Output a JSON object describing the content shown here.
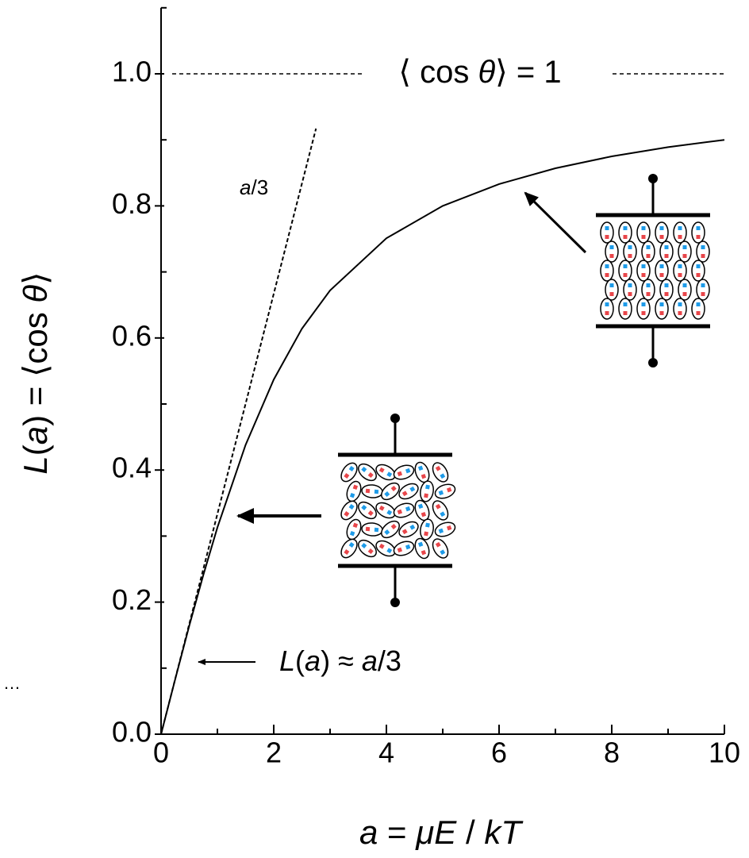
{
  "chart_data": {
    "type": "line",
    "x_label": [
      "a",
      " = ",
      "μE",
      " / ",
      "kT"
    ],
    "y_label": [
      "L",
      "(",
      "a",
      ") = ⟨cos ",
      "θ",
      "⟩"
    ],
    "annotations": {
      "limit": [
        "⟨ cos ",
        "θ",
        "⟩ = 1"
      ],
      "slope": [
        "a",
        "/3"
      ],
      "approx": [
        "L",
        "(",
        "a",
        ") ≈ ",
        "a",
        "/3"
      ],
      "corner": "…"
    },
    "x": [
      0,
      0.25,
      0.5,
      0.75,
      1,
      1.5,
      2,
      2.5,
      3,
      4,
      5,
      6,
      7,
      8,
      9,
      10
    ],
    "series": [
      {
        "color": "#000000",
        "style": "solid",
        "x": [
          0,
          0.25,
          0.5,
          0.75,
          1,
          1.5,
          2,
          2.5,
          3,
          4,
          5,
          6,
          7,
          8,
          9,
          10
        ],
        "values": [
          0,
          0.083,
          0.164,
          0.241,
          0.313,
          0.438,
          0.537,
          0.614,
          0.672,
          0.751,
          0.8,
          0.833,
          0.857,
          0.875,
          0.889,
          0.9
        ]
      },
      {
        "color": "#000000",
        "style": "dashed",
        "x": [
          0,
          2.75
        ],
        "values": [
          0,
          0.917
        ]
      }
    ],
    "reference_line": 1.0,
    "xlim": [
      0,
      10
    ],
    "ylim": [
      0,
      1.1
    ],
    "xticks": [
      0,
      2,
      4,
      6,
      8,
      10
    ],
    "xminorticks": [
      1,
      3,
      5,
      7,
      9
    ],
    "yticks": [
      {
        "value": 0,
        "label": "0.0"
      },
      0.2,
      0.4,
      0.6,
      0.8,
      {
        "value": 1,
        "label": "1.0"
      }
    ],
    "yminorticks": [
      0.1,
      0.3,
      0.5,
      0.7,
      0.9,
      1.1
    ]
  }
}
